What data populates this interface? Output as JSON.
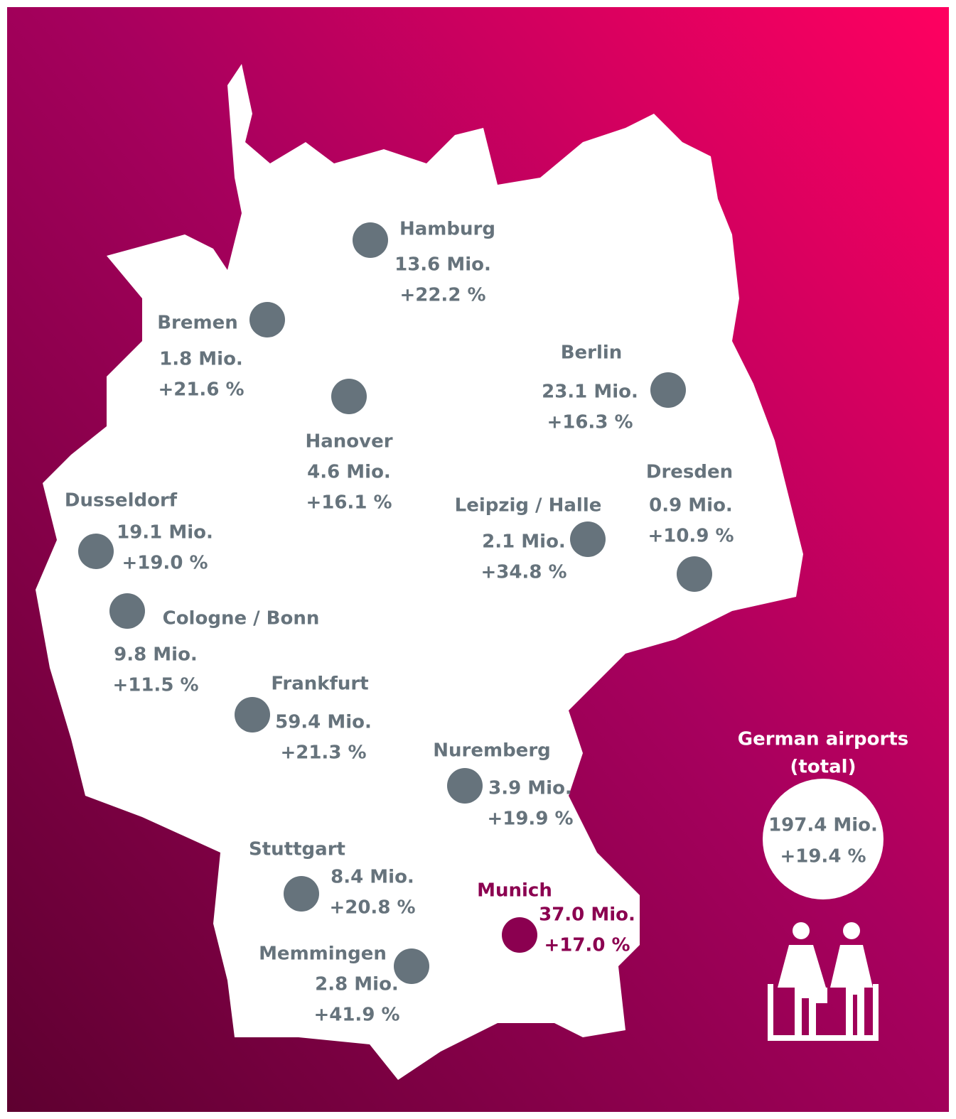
{
  "airports": [
    {
      "name": "Hamburg",
      "passengers": "13.6 Mio.",
      "change": "+22.2 %"
    },
    {
      "name": "Bremen",
      "passengers": "1.8 Mio.",
      "change": "+21.6 %"
    },
    {
      "name": "Hanover",
      "passengers": "4.6 Mio.",
      "change": "+16.1 %"
    },
    {
      "name": "Berlin",
      "passengers": "23.1 Mio.",
      "change": "+16.3 %"
    },
    {
      "name": "Dresden",
      "passengers": "0.9 Mio.",
      "change": "+10.9 %"
    },
    {
      "name": "Leipzig / Halle",
      "passengers": "2.1 Mio.",
      "change": "+34.8 %"
    },
    {
      "name": "Dusseldorf",
      "passengers": "19.1 Mio.",
      "change": "+19.0 %"
    },
    {
      "name": "Cologne / Bonn",
      "passengers": "9.8 Mio.",
      "change": "+11.5 %"
    },
    {
      "name": "Frankfurt",
      "passengers": "59.4 Mio.",
      "change": "+21.3 %"
    },
    {
      "name": "Nuremberg",
      "passengers": "3.9 Mio.",
      "change": "+19.9 %"
    },
    {
      "name": "Stuttgart",
      "passengers": "8.4 Mio.",
      "change": "+20.8 %"
    },
    {
      "name": "Munich",
      "passengers": "37.0 Mio.",
      "change": "+17.0 %"
    },
    {
      "name": "Memmingen",
      "passengers": "2.8 Mio.",
      "change": "+41.9 %"
    }
  ],
  "total": {
    "label_line1": "German airports",
    "label_line2": "(total)",
    "passengers": "197.4 Mio.",
    "change": "+19.4 %"
  }
}
